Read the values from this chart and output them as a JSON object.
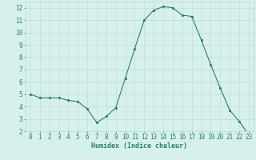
{
  "x": [
    0,
    1,
    2,
    3,
    4,
    5,
    6,
    7,
    8,
    9,
    10,
    11,
    12,
    13,
    14,
    15,
    16,
    17,
    18,
    19,
    20,
    21,
    22,
    23
  ],
  "y": [
    5.0,
    4.7,
    4.7,
    4.7,
    4.5,
    4.4,
    3.8,
    2.7,
    3.2,
    3.9,
    6.3,
    8.7,
    11.0,
    11.8,
    12.1,
    12.0,
    11.4,
    11.3,
    9.4,
    7.4,
    5.5,
    3.7,
    2.8,
    1.7
  ],
  "xlabel": "Humidex (Indice chaleur)",
  "xlim": [
    -0.5,
    23.5
  ],
  "ylim": [
    2,
    12.5
  ],
  "yticks": [
    2,
    3,
    4,
    5,
    6,
    7,
    8,
    9,
    10,
    11,
    12
  ],
  "xticks": [
    0,
    1,
    2,
    3,
    4,
    5,
    6,
    7,
    8,
    9,
    10,
    11,
    12,
    13,
    14,
    15,
    16,
    17,
    18,
    19,
    20,
    21,
    22,
    23
  ],
  "line_color": "#2e7d6e",
  "marker_color": "#2e7d6e",
  "bg_color": "#d6f0ee",
  "grid_color": "#b8d8d4",
  "xlabel_color": "#2e7d6e",
  "tick_color": "#2e7d6e",
  "xlabel_fontsize": 6,
  "tick_fontsize": 5.5
}
